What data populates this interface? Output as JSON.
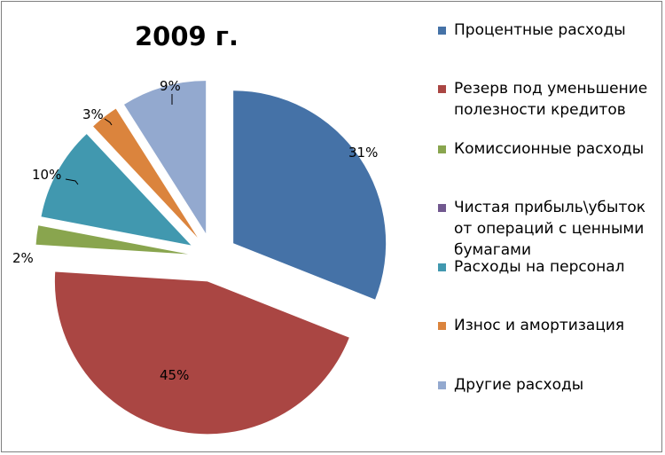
{
  "chart_data": {
    "type": "pie",
    "title": "2009 г.",
    "exploded": true,
    "legend_position": "right",
    "slices": [
      {
        "label": "Процентные расходы",
        "value": 31,
        "value_label": "31%",
        "color": "#4572A7"
      },
      {
        "label": "Резерв под уменьшение полезности кредитов",
        "value": 45,
        "value_label": "45%",
        "color": "#AA4643"
      },
      {
        "label": "Комиссионные расходы",
        "value": 2,
        "value_label": "2%",
        "color": "#89A54E"
      },
      {
        "label": "Чистая прибыль\\убыток от операций с ценными бумагами",
        "value": 0,
        "value_label": "",
        "color": "#71588F"
      },
      {
        "label": "Расходы на персонал",
        "value": 10,
        "value_label": "10%",
        "color": "#4198AF"
      },
      {
        "label": "Износ и амортизация",
        "value": 3,
        "value_label": "3%",
        "color": "#DB843D"
      },
      {
        "label": "Другие расходы",
        "value": 9,
        "value_label": "9%",
        "color": "#93A9CF"
      }
    ]
  }
}
